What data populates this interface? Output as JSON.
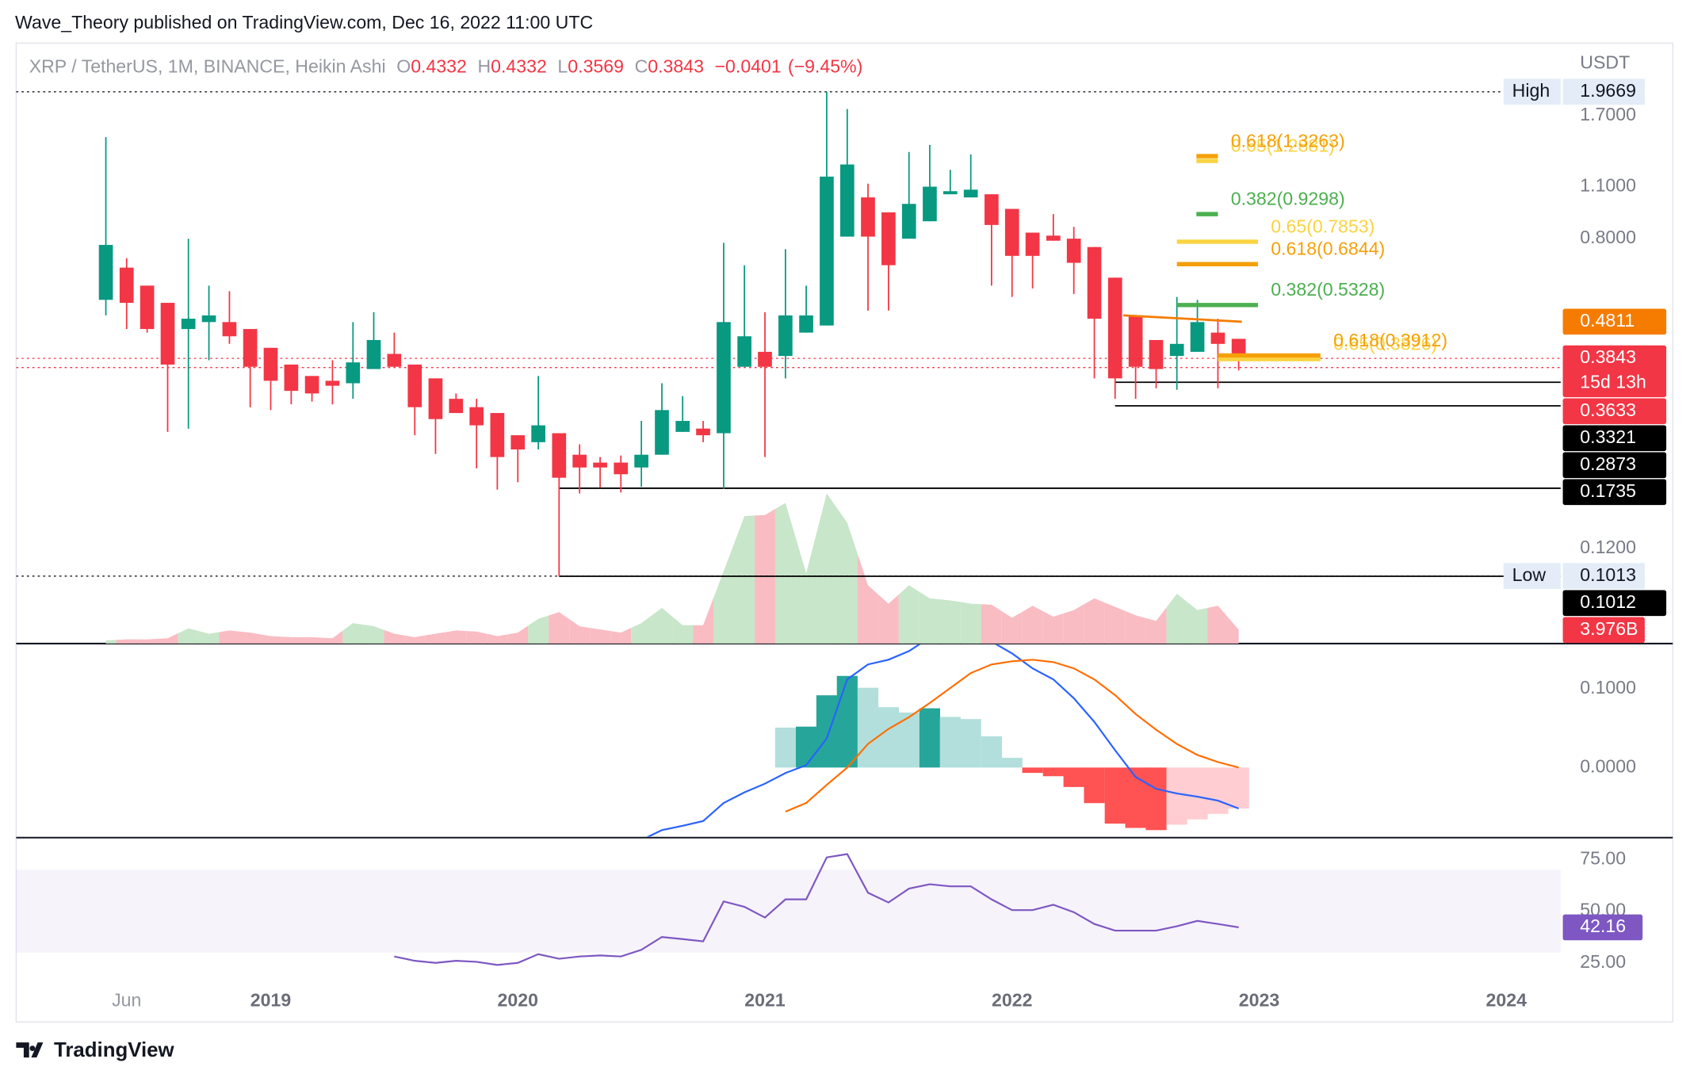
{
  "header": {
    "publisher": "Wave_Theory published on TradingView.com, Dec 16, 2022 11:00 UTC"
  },
  "chart_data": {
    "type": "candlestick",
    "symbol": "XRP / TetherUS, 1M, BINANCE, Heikin Ashi",
    "ohlc_labels": [
      "O",
      "H",
      "L",
      "C"
    ],
    "change": {
      "value": -0.0401,
      "label": "−0.0401"
    },
    "change_pct": {
      "value": -9.45,
      "label": "(−9.45%)"
    },
    "y_axis_title": "USDT",
    "log_scale": true,
    "up_color": "#089981",
    "down_color": "#f23645",
    "xlim": [
      2017.97,
      2024.22
    ],
    "xticks": [
      {
        "value": 2018.417,
        "label": "Jun"
      },
      2019,
      2020,
      2021,
      2022,
      2023,
      2024
    ],
    "ylim": [
      0.067,
      2.65
    ],
    "yticks": [
      {
        "value": 1.7,
        "label": "1.7000"
      },
      {
        "value": 1.1,
        "label": "1.1000"
      },
      {
        "value": 0.8,
        "label": "0.8000"
      },
      {
        "value": 0.12,
        "label": "0.1200"
      }
    ],
    "x": [
      2018.333,
      2018.417,
      2018.5,
      2018.583,
      2018.667,
      2018.75,
      2018.833,
      2018.917,
      2019,
      2019.083,
      2019.167,
      2019.25,
      2019.333,
      2019.417,
      2019.5,
      2019.583,
      2019.667,
      2019.75,
      2019.833,
      2019.917,
      2020,
      2020.083,
      2020.167,
      2020.25,
      2020.333,
      2020.417,
      2020.5,
      2020.583,
      2020.667,
      2020.75,
      2020.833,
      2020.917,
      2021,
      2021.083,
      2021.167,
      2021.25,
      2021.333,
      2021.417,
      2021.5,
      2021.583,
      2021.667,
      2021.75,
      2021.833,
      2021.917,
      2022,
      2022.083,
      2022.167,
      2022.25,
      2022.333,
      2022.417,
      2022.5,
      2022.583,
      2022.667,
      2022.75,
      2022.833,
      2022.917
    ],
    "open": [
      0.55,
      0.67,
      0.6,
      0.54,
      0.46,
      0.48,
      0.48,
      0.46,
      0.41,
      0.37,
      0.345,
      0.335,
      0.33,
      0.36,
      0.395,
      0.37,
      0.34,
      0.3,
      0.285,
      0.275,
      0.24,
      0.23,
      0.243,
      0.213,
      0.203,
      0.203,
      0.197,
      0.213,
      0.245,
      0.25,
      0.243,
      0.365,
      0.4,
      0.39,
      0.45,
      0.47,
      0.81,
      1.03,
      0.94,
      0.8,
      0.89,
      1.05,
      1.03,
      1.05,
      0.96,
      0.83,
      0.815,
      0.8,
      0.76,
      0.63,
      0.5,
      0.43,
      0.39,
      0.4,
      0.45,
      0.4332
    ],
    "high": [
      1.49,
      0.71,
      0.6,
      0.54,
      0.8,
      0.6,
      0.58,
      0.46,
      0.41,
      0.37,
      0.345,
      0.38,
      0.48,
      0.51,
      0.45,
      0.37,
      0.34,
      0.31,
      0.3,
      0.275,
      0.24,
      0.345,
      0.243,
      0.227,
      0.21,
      0.212,
      0.262,
      0.33,
      0.305,
      0.262,
      0.78,
      0.68,
      0.51,
      0.75,
      0.6,
      1.9669,
      1.77,
      1.12,
      0.94,
      1.36,
      1.42,
      1.22,
      1.34,
      1.05,
      0.96,
      0.83,
      0.93,
      0.86,
      0.76,
      0.63,
      0.5,
      0.43,
      0.56,
      0.55,
      0.49,
      0.4332
    ],
    "low": [
      0.5,
      0.46,
      0.45,
      0.245,
      0.25,
      0.38,
      0.42,
      0.285,
      0.28,
      0.29,
      0.295,
      0.29,
      0.3,
      0.36,
      0.365,
      0.24,
      0.214,
      0.275,
      0.196,
      0.172,
      0.18,
      0.22,
      0.1013,
      0.168,
      0.174,
      0.169,
      0.175,
      0.213,
      0.245,
      0.23,
      0.173,
      0.365,
      0.21,
      0.34,
      0.45,
      0.47,
      0.81,
      0.515,
      0.515,
      0.8,
      0.89,
      1.05,
      1.03,
      0.6,
      0.56,
      0.59,
      0.79,
      0.57,
      0.34,
      0.3,
      0.3,
      0.32,
      0.317,
      0.4,
      0.32,
      0.3569
    ],
    "close": [
      0.77,
      0.54,
      0.46,
      0.37,
      0.49,
      0.5,
      0.44,
      0.365,
      0.335,
      0.315,
      0.31,
      0.325,
      0.375,
      0.43,
      0.365,
      0.285,
      0.265,
      0.275,
      0.255,
      0.21,
      0.22,
      0.255,
      0.185,
      0.197,
      0.197,
      0.189,
      0.213,
      0.28,
      0.262,
      0.24,
      0.48,
      0.44,
      0.365,
      0.5,
      0.5,
      1.17,
      1.26,
      0.81,
      0.68,
      0.99,
      1.1,
      1.07,
      1.08,
      0.87,
      0.72,
      0.72,
      0.79,
      0.69,
      0.49,
      0.34,
      0.365,
      0.36,
      0.42,
      0.48,
      0.42,
      0.3843
    ],
    "volume": {
      "ylim": [
        0,
        170
      ],
      "up_color": "#c8e6c9",
      "down_color": "#f9bcc3",
      "tag_label": "3.976B",
      "tag_color": "#f23645",
      "values": [
        0.9,
        1.2,
        1.2,
        1.5,
        4.3,
        2.8,
        3.7,
        3.1,
        2.1,
        1.8,
        1.8,
        1.5,
        5.8,
        4.9,
        2.8,
        1.8,
        2.8,
        3.7,
        3.4,
        2.1,
        3.1,
        7.0,
        8.9,
        4.9,
        4.0,
        3.1,
        5.8,
        10.1,
        5.2,
        5.2,
        20.5,
        36.1,
        36.4,
        39.8,
        19.9,
        42.5,
        34.2,
        16.5,
        11.3,
        16.5,
        12.8,
        12.2,
        11.3,
        11.0,
        7.3,
        10.7,
        7.6,
        9.5,
        12.8,
        10.4,
        8.0,
        6.4,
        14.1,
        9.5,
        10.7,
        3.976
      ]
    },
    "extremes": [
      {
        "title": "High",
        "value": 1.9669
      },
      {
        "title": "Low",
        "value": 0.1013
      }
    ],
    "price_tags": [
      {
        "value": 0.4811,
        "bg": "#f57c00"
      },
      {
        "value": 0.3843,
        "bg": "#f23645",
        "sub": "15d 13h",
        "dotted": true
      },
      {
        "value": 0.3633,
        "bg": "#f23645",
        "dotted": true
      },
      {
        "value": 0.3321,
        "bg": "#000000",
        "line_from": 2022.417
      },
      {
        "value": 0.2873,
        "bg": "#000000",
        "line_from": 2022.417
      },
      {
        "value": 0.1735,
        "bg": "#000000",
        "line_from": 2020.167
      },
      {
        "value": 0.1012,
        "bg": "#000000",
        "line_from": 2020.167
      }
    ],
    "trend_line": {
      "x": [
        2022.45,
        2022.93
      ],
      "values": [
        0.5,
        0.4811
      ],
      "color": "#f57c00"
    },
    "fib_groups": [
      {
        "x": [
          2022.746,
          2022.833
        ],
        "levels": [
          {
            "label": "0.65(1.2881)",
            "value": 1.2881,
            "color": "#f9d342"
          },
          {
            "label": "0.618(1.3263)",
            "value": 1.3263,
            "color": "#f5a00a"
          },
          {
            "label": "0.382(0.9298)",
            "value": 0.9298,
            "color": "#4caf50"
          }
        ]
      },
      {
        "x": [
          2022.667,
          2022.995
        ],
        "levels": [
          {
            "label": "0.65(0.7853)",
            "value": 0.7853,
            "color": "#f9d342"
          },
          {
            "label": "0.618(0.6844)",
            "value": 0.6844,
            "color": "#f5a00a"
          },
          {
            "label": "0.382(0.5328)",
            "value": 0.5328,
            "color": "#4caf50"
          }
        ]
      },
      {
        "x": [
          2022.833,
          2023.248
        ],
        "levels": [
          {
            "label": "0.65(0.3826)",
            "value": 0.3826,
            "color": "#f9d342"
          },
          {
            "label": "0.618(0.3912)",
            "value": 0.3912,
            "color": "#f5a00a"
          }
        ]
      }
    ],
    "macd": {
      "ylim": [
        -0.089,
        0.1534
      ],
      "yticks": [
        {
          "value": 0.1,
          "label": "0.1000"
        },
        {
          "value": 0,
          "label": "0.0000"
        }
      ],
      "macd_color": "#2962ff",
      "signal_color": "#ff6d00",
      "hist_colors": {
        "pos_rising": "#26a69a",
        "pos_falling": "#b2dfdb",
        "neg_falling": "#ff5252",
        "neg_rising": "#ffcdd2"
      },
      "macd": [
        null,
        null,
        null,
        null,
        null,
        null,
        null,
        null,
        null,
        null,
        null,
        null,
        null,
        null,
        null,
        null,
        null,
        null,
        null,
        null,
        null,
        null,
        null,
        null,
        null,
        null,
        -0.092,
        -0.0795,
        -0.074,
        -0.068,
        -0.045,
        -0.0315,
        -0.0205,
        -0.007,
        0.003,
        0.037,
        0.112,
        0.131,
        0.137,
        0.148,
        0.165,
        0.18,
        0.175,
        0.16,
        0.145,
        0.126,
        0.112,
        0.088,
        0.058,
        0.022,
        -0.012,
        -0.027,
        -0.033,
        -0.037,
        -0.042,
        -0.052
      ],
      "signal": [
        null,
        null,
        null,
        null,
        null,
        null,
        null,
        null,
        null,
        null,
        null,
        null,
        null,
        null,
        null,
        null,
        null,
        null,
        null,
        null,
        null,
        null,
        null,
        null,
        null,
        null,
        null,
        null,
        null,
        null,
        null,
        null,
        null,
        -0.056,
        -0.045,
        -0.022,
        0,
        0.03,
        0.049,
        0.064,
        0.082,
        0.101,
        0.12,
        0.131,
        0.135,
        0.137,
        0.134,
        0.126,
        0.112,
        0.092,
        0.068,
        0.048,
        0.03,
        0.016,
        0.007,
        0
      ],
      "histogram": [
        null,
        null,
        null,
        null,
        null,
        null,
        null,
        null,
        null,
        null,
        null,
        null,
        null,
        null,
        null,
        null,
        null,
        null,
        null,
        null,
        null,
        null,
        null,
        null,
        null,
        null,
        null,
        null,
        null,
        null,
        null,
        null,
        null,
        0.0507,
        0.052,
        0.0918,
        0.1164,
        0.1014,
        0.0767,
        0.0699,
        0.0753,
        0.0644,
        0.0616,
        0.0397,
        0.0123,
        -0.0068,
        -0.011,
        -0.0247,
        -0.0452,
        -0.0712,
        -0.0767,
        -0.0795,
        -0.0726,
        -0.0658,
        -0.0589,
        -0.0521
      ]
    },
    "rsi": {
      "ylim": [
        -2,
        84
      ],
      "band": [
        30,
        70
      ],
      "color": "#7e57c2",
      "yticks": [
        {
          "value": 75,
          "label": "75.00"
        },
        {
          "value": 50,
          "label": "50.00"
        },
        {
          "value": 25,
          "label": "25.00"
        }
      ],
      "values": [
        null,
        null,
        null,
        null,
        null,
        null,
        null,
        null,
        null,
        null,
        null,
        null,
        null,
        null,
        28.1,
        26,
        25,
        26,
        25.5,
        24,
        25,
        29.2,
        27,
        28.1,
        28.6,
        28.1,
        31.3,
        37.5,
        36.5,
        35.4,
        54.7,
        52.1,
        46.9,
        55.7,
        55.7,
        76,
        77.6,
        58.9,
        54.2,
        60.9,
        63,
        62,
        62,
        55.7,
        50.5,
        50.5,
        53.1,
        49.5,
        43.8,
        40.6,
        40.6,
        40.6,
        42.7,
        45.3,
        43.8,
        42.16
      ]
    }
  },
  "footer": {
    "brand": "TradingView"
  }
}
